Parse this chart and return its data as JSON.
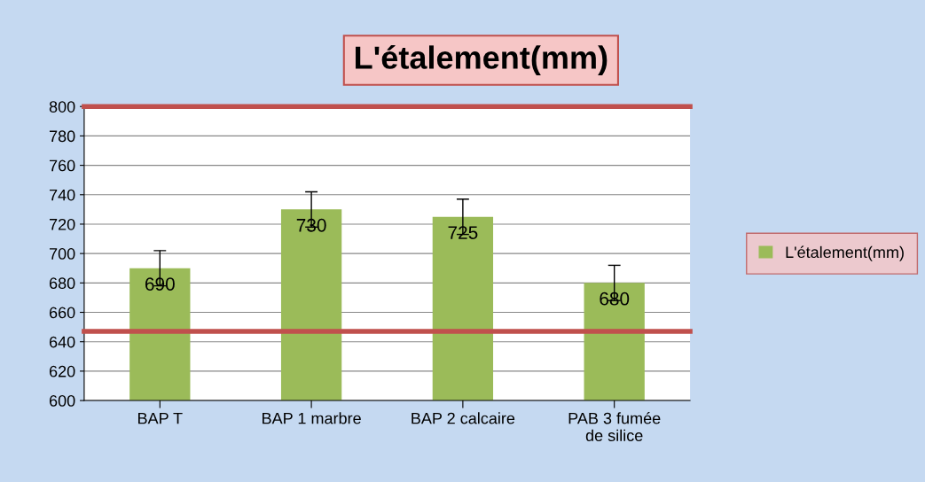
{
  "chart_data": {
    "type": "bar",
    "title": "L'étalement(mm)",
    "categories": [
      "BAP T",
      "BAP 1 marbre",
      "BAP 2 calcaire",
      "PAB 3 fumée de silice"
    ],
    "series": [
      {
        "name": "L'étalement(mm)",
        "color": "#9bbb59",
        "values": [
          690,
          730,
          725,
          680
        ],
        "errors": [
          12,
          12,
          12,
          12
        ]
      }
    ],
    "data_labels": true,
    "ylim": [
      600,
      800
    ],
    "yticks": [
      600,
      620,
      640,
      660,
      680,
      700,
      720,
      740,
      760,
      780,
      800
    ],
    "grid": "y",
    "legend": "right",
    "ref_lines": [
      {
        "axis": "y",
        "value": 800,
        "color": "#c0504d"
      },
      {
        "axis": "y",
        "value": 647,
        "color": "#c0504d"
      }
    ]
  }
}
